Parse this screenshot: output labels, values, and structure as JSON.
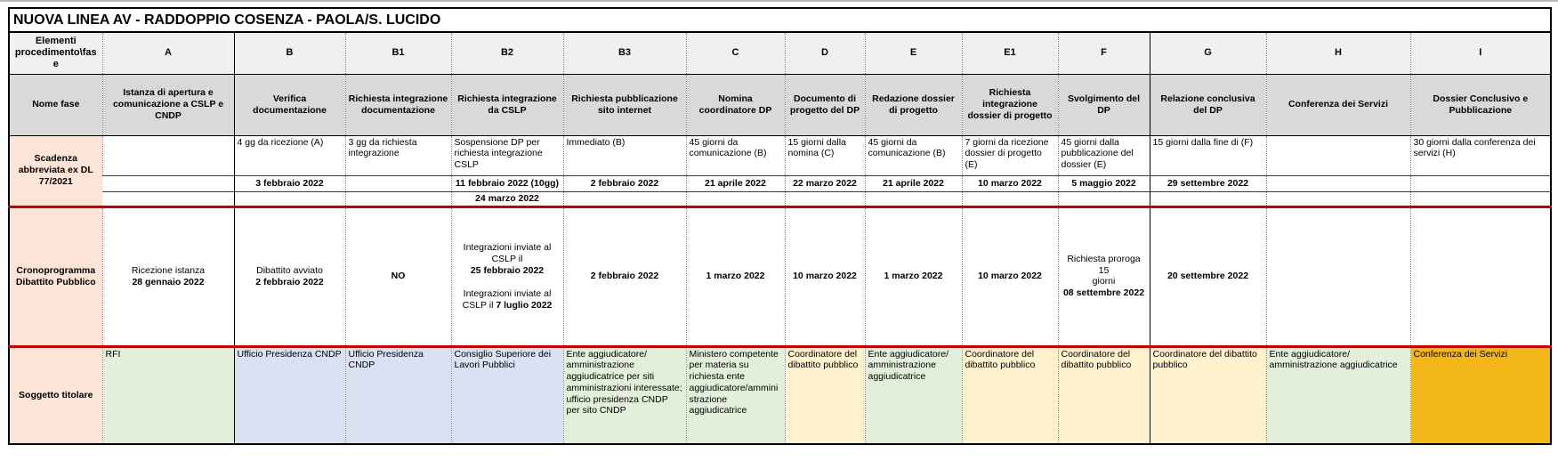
{
  "title": "NUOVA LINEA AV - RADDOPPIO COSENZA - PAOLA/S. LUCIDO",
  "corner_header": "Elementi procedimento\\fase",
  "row_labels": {
    "nome_fase": "Nome fase",
    "scadenza": "Scadenza abbreviata ex DL 77/2021",
    "cronoprogramma": "Cronoprogramma Dibattito Pubblico",
    "soggetto": "Soggetto titolare"
  },
  "columns": [
    {
      "key": "A",
      "phase": "Istanza di apertura e comunicazione a CSLP e CNDP"
    },
    {
      "key": "B",
      "phase": "Verifica documentazione"
    },
    {
      "key": "B1",
      "phase": "Richiesta integrazione documentazione"
    },
    {
      "key": "B2",
      "phase": "Richiesta integrazione da CSLP"
    },
    {
      "key": "B3",
      "phase": "Richiesta pubblicazione sito internet"
    },
    {
      "key": "C",
      "phase": "Nomina coordinatore DP"
    },
    {
      "key": "D",
      "phase": "Documento di progetto del DP"
    },
    {
      "key": "E",
      "phase": "Redazione dossier di progetto"
    },
    {
      "key": "E1",
      "phase": "Richiesta integrazione dossier di progetto"
    },
    {
      "key": "F",
      "phase": "Svolgimento del DP"
    },
    {
      "key": "G",
      "phase": "Relazione conclusiva del DP"
    },
    {
      "key": "H",
      "phase": "Conferenza dei Servizi"
    },
    {
      "key": "I",
      "phase": "Dossier Conclusivo e Pubblicazione"
    }
  ],
  "scadenza": {
    "desc": [
      "",
      "4 gg da ricezione (A)",
      "3 gg da richiesta integrazione",
      "Sospensione DP per richiesta integrazione CSLP",
      "Immediato (B)",
      "45 giorni da comunicazione (B)",
      "15 giorni dalla nomina (C)",
      "45 giorni da comunicazione (B)",
      "7 giorni da ricezione dossier di progetto (E)",
      "45 giorni dalla pubblicazione del dossier (E)",
      "15 giorni dalla fine di (F)",
      "",
      "30 giorni dalla conferenza dei servizi (H)"
    ],
    "date1": [
      "",
      "3 febbraio 2022",
      "",
      "11 febbraio 2022 (10gg)",
      "2 febbraio 2022",
      "21 aprile 2022",
      "22 marzo 2022",
      "21 aprile 2022",
      "10 marzo 2022",
      "5 maggio 2022",
      "29 settembre 2022",
      "",
      ""
    ],
    "date2": [
      "",
      "",
      "",
      "24 marzo 2022",
      "",
      "",
      "",
      "",
      "",
      "",
      "",
      "",
      ""
    ]
  },
  "cronoprogramma": [
    [
      [
        [
          "Ricezione istanza",
          0
        ]
      ],
      [
        [
          "28 gennaio 2022",
          1
        ]
      ]
    ],
    [
      [
        [
          "Dibattito avviato",
          0
        ]
      ],
      [
        [
          "2 febbraio 2022",
          1
        ]
      ]
    ],
    [
      [
        [
          "NO",
          1
        ]
      ]
    ],
    [
      [
        [
          "Integrazioni inviate al",
          0
        ]
      ],
      [
        [
          "CSLP il",
          0
        ]
      ],
      [
        [
          "25 febbraio 2022",
          1
        ]
      ],
      [],
      [
        [
          "Integrazioni inviate al",
          0
        ]
      ],
      [
        [
          "CSLP il ",
          0
        ],
        [
          "7 luglio 2022",
          1
        ]
      ]
    ],
    [
      [
        [
          "2 febbraio 2022",
          1
        ]
      ]
    ],
    [
      [
        [
          "1 marzo 2022",
          1
        ]
      ]
    ],
    [
      [
        [
          "10 marzo 2022",
          1
        ]
      ]
    ],
    [
      [
        [
          "1 marzo 2022",
          1
        ]
      ]
    ],
    [
      [
        [
          "10 marzo 2022",
          1
        ]
      ]
    ],
    [
      [
        [
          "Richiesta proroga 15",
          0
        ]
      ],
      [
        [
          "giorni",
          0
        ]
      ],
      [
        [
          "08 settembre 2022",
          1
        ]
      ]
    ],
    [
      [
        [
          "20 settembre 2022",
          1
        ]
      ]
    ],
    [],
    []
  ],
  "soggetto": [
    {
      "text": "RFI",
      "color": "green"
    },
    {
      "text": "Ufficio Presidenza CNDP",
      "color": "blue"
    },
    {
      "text": "Ufficio Presidenza CNDP",
      "color": "blue"
    },
    {
      "text": "Consiglio Superiore dei Lavori Pubblici",
      "color": "blue"
    },
    {
      "text": "Ente aggiudicatore/ amministrazione aggiudicatrice per siti amministrazioni interessate; ufficio presidenza CNDP per sito CNDP",
      "color": "green"
    },
    {
      "text": "Ministero competente per materia su richiesta ente aggiudicatore/amministrazione aggiudicatrice",
      "color": "green"
    },
    {
      "text": "Coordinatore del dibattito pubblico",
      "color": "yellow"
    },
    {
      "text": "Ente aggiudicatore/ amministrazione aggiudicatrice",
      "color": "green"
    },
    {
      "text": "Coordinatore del dibattito pubblico",
      "color": "yellow"
    },
    {
      "text": "Coordinatore del dibattito pubblico",
      "color": "yellow"
    },
    {
      "text": "Coordinatore del dibattito pubblico",
      "color": "yellow"
    },
    {
      "text": "Ente aggiudicatore/ amministrazione aggiudicatrice",
      "color": "green"
    },
    {
      "text": "Conferenza dei Servizi",
      "color": "orange"
    }
  ],
  "colors": {
    "green": "#e2efda",
    "blue": "#d9e1f2",
    "yellow": "#fff2cc",
    "orange": "#f4b719",
    "peach": "#fce4d6",
    "header_gray": "#f0f0f0",
    "subheader_gray": "#d9d9d9",
    "red_line": "#c00000"
  }
}
